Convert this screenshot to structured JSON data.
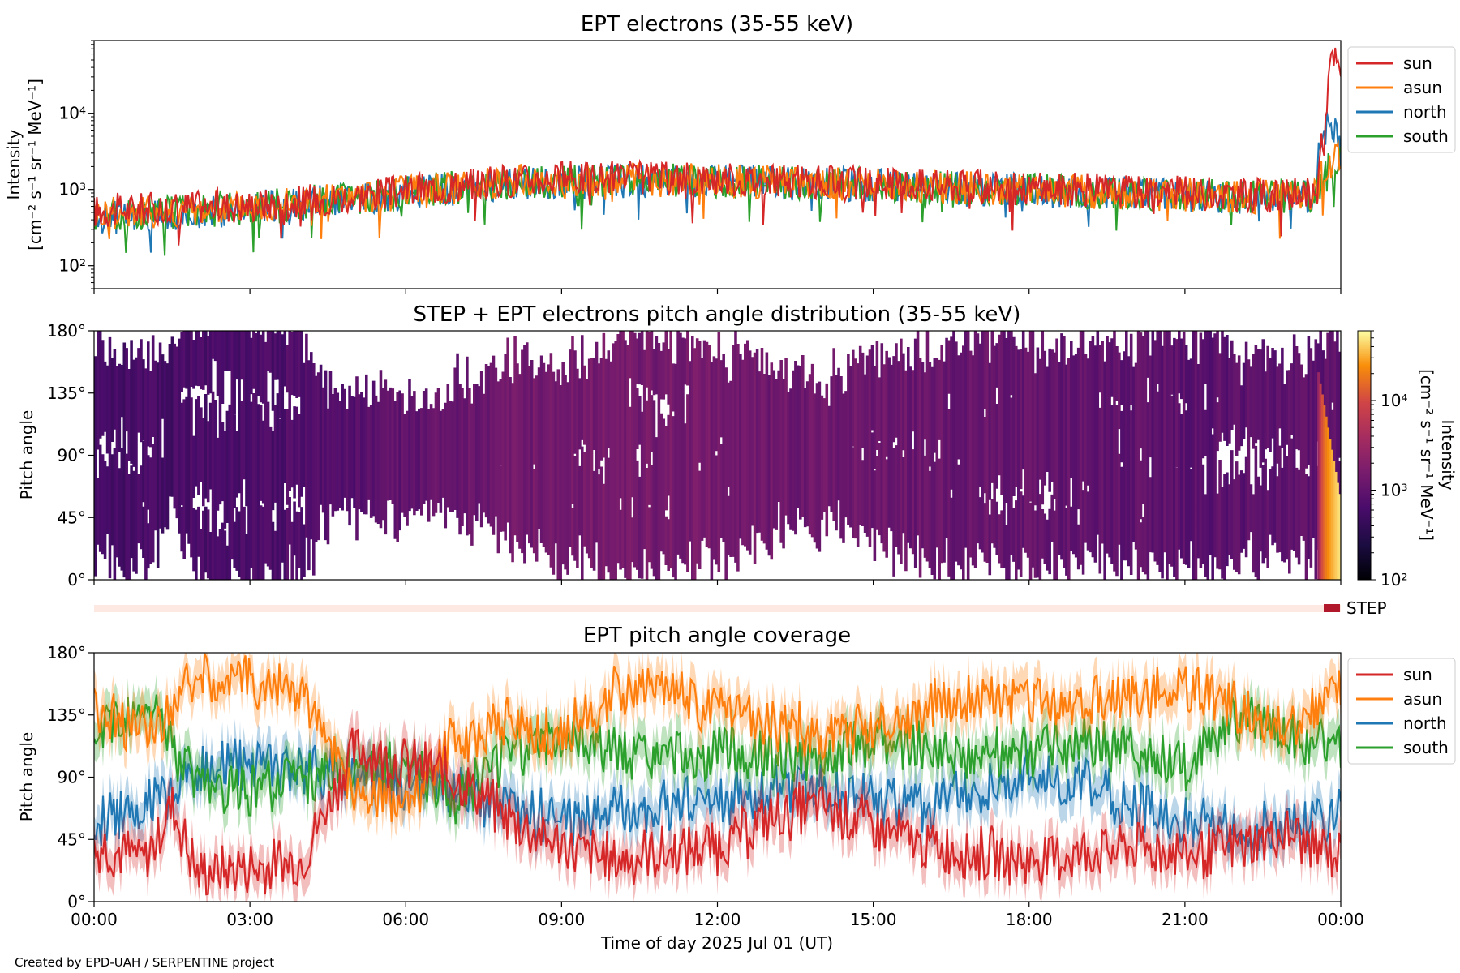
{
  "credit": "Created by EPD-UAH / SERPENTINE project",
  "colors": {
    "sun": "#d62728",
    "asun": "#ff7f0e",
    "north": "#1f77b4",
    "south": "#2ca02c",
    "step": "#b2182b"
  },
  "chart_data": [
    {
      "type": "line",
      "title": "EPT electrons (35-55 keV)",
      "ylabel": [
        "Intensity",
        "[cm⁻² s⁻¹ sr⁻¹ MeV⁻¹]"
      ],
      "yscale": "log",
      "ylim": [
        50,
        90000
      ],
      "yticks": [
        {
          "value": 100,
          "label": "10²"
        },
        {
          "value": 1000,
          "label": "10³"
        },
        {
          "value": 10000,
          "label": "10⁴"
        }
      ],
      "xlim": [
        "00:00",
        "24:00"
      ],
      "legend": "outside-right",
      "series": [
        {
          "name": "sun",
          "key": "sun",
          "x_hours": [
            0,
            1,
            2,
            3,
            4,
            5,
            6,
            7,
            8,
            9,
            10,
            11,
            12,
            13,
            14,
            15,
            16,
            17,
            18,
            19,
            20,
            21,
            22,
            23,
            23.5,
            23.7,
            23.85,
            24
          ],
          "y": [
            520,
            560,
            600,
            620,
            700,
            820,
            950,
            1150,
            1300,
            1400,
            1450,
            1400,
            1380,
            1300,
            1250,
            1200,
            1150,
            1100,
            1050,
            1000,
            950,
            900,
            850,
            820,
            900,
            5000,
            55000,
            30000
          ]
        },
        {
          "name": "asun",
          "key": "asun",
          "x_hours": [
            0,
            2,
            4,
            6,
            8,
            10,
            12,
            14,
            16,
            18,
            20,
            22,
            23.5,
            24
          ],
          "y": [
            480,
            550,
            680,
            900,
            1250,
            1350,
            1300,
            1200,
            1100,
            1000,
            900,
            800,
            850,
            3000
          ]
        },
        {
          "name": "north",
          "key": "north",
          "x_hours": [
            0,
            2,
            4,
            6,
            8,
            10,
            12,
            14,
            16,
            18,
            20,
            22,
            23.5,
            23.8,
            24
          ],
          "y": [
            450,
            500,
            650,
            880,
            1200,
            1300,
            1280,
            1180,
            1080,
            980,
            880,
            780,
            800,
            8000,
            2500
          ]
        },
        {
          "name": "south",
          "key": "south",
          "x_hours": [
            0,
            2,
            4,
            6,
            8,
            10,
            12,
            14,
            16,
            18,
            20,
            22,
            23.5,
            24
          ],
          "y": [
            470,
            520,
            660,
            900,
            1220,
            1330,
            1300,
            1190,
            1090,
            990,
            890,
            790,
            820,
            2800
          ]
        }
      ]
    },
    {
      "type": "heatmap",
      "title": "STEP + EPT electrons pitch angle distribution (35-55 keV)",
      "ylabel": "Pitch angle",
      "ylim": [
        0,
        180
      ],
      "yticks": [
        "0°",
        "45°",
        "90°",
        "135°",
        "180°"
      ],
      "colorbar": {
        "label": "Intensity",
        "unit": "[cm⁻² s⁻¹ sr⁻¹ MeV⁻¹]",
        "scale": "log",
        "range": [
          100,
          60000
        ],
        "ticks": [
          {
            "value": 100,
            "label": "10²"
          },
          {
            "value": 1000,
            "label": "10³"
          },
          {
            "value": 10000,
            "label": "10⁴"
          }
        ]
      }
    },
    {
      "type": "bar",
      "legend": [
        {
          "name": "STEP",
          "key": "step"
        }
      ]
    },
    {
      "type": "line",
      "title": "EPT pitch angle coverage",
      "ylabel": "Pitch angle",
      "ylim": [
        0,
        180
      ],
      "yticks": [
        "0°",
        "45°",
        "90°",
        "135°",
        "180°"
      ],
      "xlabel": "Time of day 2025 Jul 01 (UT)",
      "xticks": [
        "00:00",
        "03:00",
        "06:00",
        "09:00",
        "12:00",
        "15:00",
        "18:00",
        "21:00",
        "00:00"
      ],
      "legend": "outside-right",
      "series": [
        {
          "name": "sun",
          "key": "sun",
          "x_hours": [
            0,
            1,
            1.5,
            2,
            3,
            4,
            5,
            6,
            7,
            8,
            9,
            10,
            11,
            12,
            13,
            14,
            15,
            16,
            17,
            18,
            19,
            20,
            21,
            22,
            23,
            24
          ],
          "y": [
            40,
            30,
            70,
            20,
            25,
            30,
            110,
            100,
            90,
            60,
            40,
            30,
            35,
            40,
            60,
            70,
            55,
            40,
            35,
            30,
            35,
            40,
            35,
            40,
            50,
            30
          ]
        },
        {
          "name": "asun",
          "key": "asun",
          "x_hours": [
            0,
            1,
            2,
            3,
            4,
            5,
            6,
            7,
            8,
            9,
            10,
            11,
            12,
            13,
            14,
            15,
            16,
            17,
            18,
            19,
            20,
            21,
            22,
            23,
            24
          ],
          "y": [
            140,
            120,
            165,
            160,
            150,
            80,
            70,
            120,
            130,
            120,
            150,
            155,
            140,
            130,
            120,
            130,
            140,
            150,
            145,
            140,
            150,
            155,
            140,
            130,
            150
          ]
        },
        {
          "name": "north",
          "key": "north",
          "x_hours": [
            0,
            1,
            2,
            3,
            4,
            5,
            6,
            7,
            8,
            9,
            10,
            11,
            12,
            13,
            14,
            15,
            16,
            17,
            18,
            19,
            20,
            21,
            22,
            23,
            24
          ],
          "y": [
            60,
            70,
            95,
            100,
            95,
            90,
            85,
            80,
            65,
            60,
            65,
            70,
            75,
            80,
            85,
            75,
            70,
            80,
            90,
            85,
            70,
            60,
            50,
            55,
            65
          ]
        },
        {
          "name": "south",
          "key": "south",
          "x_hours": [
            0,
            1,
            2,
            3,
            4,
            5,
            6,
            7,
            8,
            9,
            10,
            11,
            12,
            13,
            14,
            15,
            16,
            17,
            18,
            19,
            20,
            21,
            22,
            23,
            24
          ],
          "y": [
            120,
            140,
            85,
            80,
            90,
            95,
            100,
            70,
            110,
            115,
            110,
            100,
            110,
            105,
            100,
            120,
            110,
            105,
            110,
            115,
            110,
            100,
            130,
            120,
            110
          ]
        }
      ]
    }
  ]
}
